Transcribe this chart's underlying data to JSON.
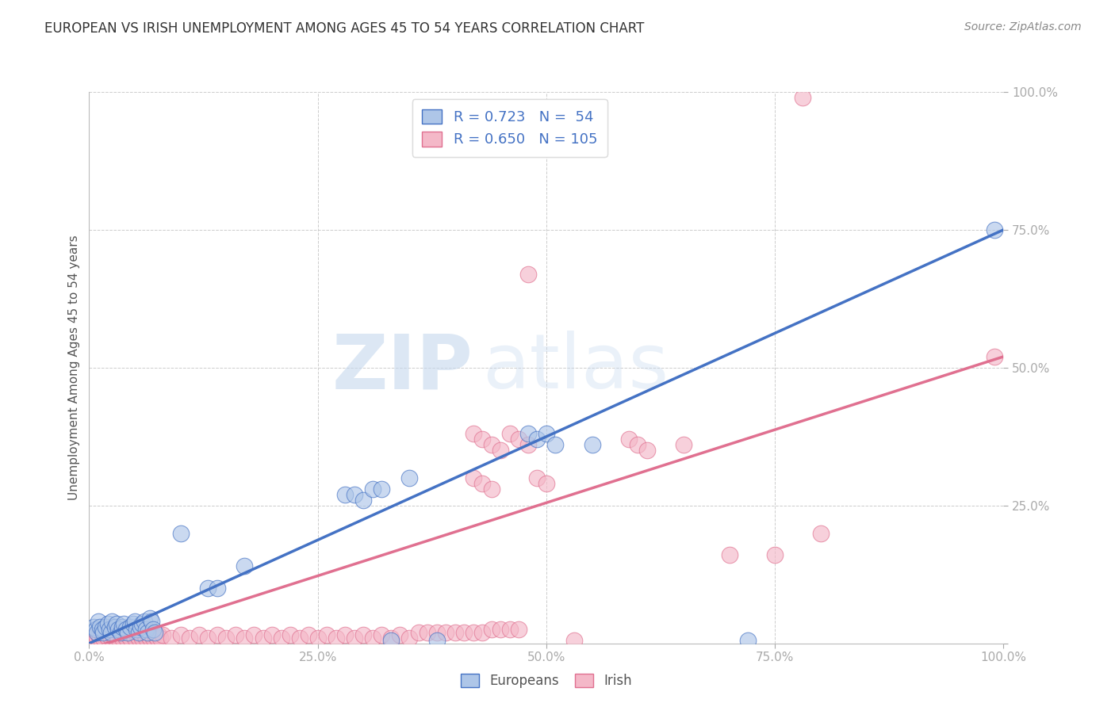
{
  "title": "EUROPEAN VS IRISH UNEMPLOYMENT AMONG AGES 45 TO 54 YEARS CORRELATION CHART",
  "source": "Source: ZipAtlas.com",
  "ylabel": "Unemployment Among Ages 45 to 54 years",
  "xlim": [
    0,
    1
  ],
  "ylim": [
    0,
    1
  ],
  "xticks": [
    0.0,
    0.25,
    0.5,
    0.75,
    1.0
  ],
  "yticks": [
    0.0,
    0.25,
    0.5,
    0.75,
    1.0
  ],
  "xticklabels": [
    "0.0%",
    "25.0%",
    "50.0%",
    "75.0%",
    "100.0%"
  ],
  "yticklabels": [
    "",
    "25.0%",
    "50.0%",
    "75.0%",
    "100.0%"
  ],
  "legend_blue_label": "Europeans",
  "legend_pink_label": "Irish",
  "blue_color": "#aec6e8",
  "pink_color": "#f4b8c8",
  "line_blue": "#4472c4",
  "line_pink": "#e07090",
  "tick_color": "#4472c4",
  "watermark_zip": "ZIP",
  "watermark_atlas": "atlas",
  "grid_color": "#cccccc",
  "blue_scatter": [
    [
      0.005,
      0.03
    ],
    [
      0.007,
      0.025
    ],
    [
      0.008,
      0.02
    ],
    [
      0.01,
      0.04
    ],
    [
      0.012,
      0.03
    ],
    [
      0.014,
      0.025
    ],
    [
      0.015,
      0.02
    ],
    [
      0.018,
      0.03
    ],
    [
      0.02,
      0.035
    ],
    [
      0.022,
      0.025
    ],
    [
      0.024,
      0.02
    ],
    [
      0.025,
      0.04
    ],
    [
      0.028,
      0.03
    ],
    [
      0.03,
      0.035
    ],
    [
      0.032,
      0.025
    ],
    [
      0.034,
      0.02
    ],
    [
      0.036,
      0.03
    ],
    [
      0.038,
      0.035
    ],
    [
      0.04,
      0.025
    ],
    [
      0.042,
      0.02
    ],
    [
      0.045,
      0.03
    ],
    [
      0.048,
      0.035
    ],
    [
      0.05,
      0.04
    ],
    [
      0.052,
      0.025
    ],
    [
      0.054,
      0.02
    ],
    [
      0.056,
      0.03
    ],
    [
      0.058,
      0.035
    ],
    [
      0.06,
      0.04
    ],
    [
      0.062,
      0.025
    ],
    [
      0.064,
      0.02
    ],
    [
      0.066,
      0.045
    ],
    [
      0.068,
      0.04
    ],
    [
      0.07,
      0.025
    ],
    [
      0.072,
      0.02
    ],
    [
      0.1,
      0.2
    ],
    [
      0.13,
      0.1
    ],
    [
      0.14,
      0.1
    ],
    [
      0.17,
      0.14
    ],
    [
      0.28,
      0.27
    ],
    [
      0.29,
      0.27
    ],
    [
      0.3,
      0.26
    ],
    [
      0.31,
      0.28
    ],
    [
      0.32,
      0.28
    ],
    [
      0.33,
      0.005
    ],
    [
      0.35,
      0.3
    ],
    [
      0.38,
      0.005
    ],
    [
      0.48,
      0.38
    ],
    [
      0.49,
      0.37
    ],
    [
      0.5,
      0.38
    ],
    [
      0.51,
      0.36
    ],
    [
      0.55,
      0.36
    ],
    [
      0.72,
      0.005
    ],
    [
      0.99,
      0.75
    ]
  ],
  "pink_scatter": [
    [
      0.005,
      0.01
    ],
    [
      0.007,
      0.015
    ],
    [
      0.008,
      0.01
    ],
    [
      0.01,
      0.015
    ],
    [
      0.012,
      0.01
    ],
    [
      0.014,
      0.015
    ],
    [
      0.015,
      0.01
    ],
    [
      0.018,
      0.015
    ],
    [
      0.02,
      0.01
    ],
    [
      0.022,
      0.015
    ],
    [
      0.024,
      0.01
    ],
    [
      0.025,
      0.015
    ],
    [
      0.028,
      0.01
    ],
    [
      0.03,
      0.015
    ],
    [
      0.032,
      0.01
    ],
    [
      0.034,
      0.015
    ],
    [
      0.036,
      0.01
    ],
    [
      0.038,
      0.015
    ],
    [
      0.04,
      0.01
    ],
    [
      0.042,
      0.015
    ],
    [
      0.045,
      0.01
    ],
    [
      0.048,
      0.015
    ],
    [
      0.05,
      0.01
    ],
    [
      0.052,
      0.015
    ],
    [
      0.054,
      0.01
    ],
    [
      0.056,
      0.015
    ],
    [
      0.058,
      0.01
    ],
    [
      0.06,
      0.015
    ],
    [
      0.062,
      0.01
    ],
    [
      0.064,
      0.015
    ],
    [
      0.066,
      0.01
    ],
    [
      0.068,
      0.015
    ],
    [
      0.07,
      0.01
    ],
    [
      0.072,
      0.015
    ],
    [
      0.074,
      0.01
    ],
    [
      0.076,
      0.015
    ],
    [
      0.078,
      0.01
    ],
    [
      0.08,
      0.015
    ],
    [
      0.09,
      0.01
    ],
    [
      0.1,
      0.015
    ],
    [
      0.11,
      0.01
    ],
    [
      0.12,
      0.015
    ],
    [
      0.13,
      0.01
    ],
    [
      0.14,
      0.015
    ],
    [
      0.15,
      0.01
    ],
    [
      0.16,
      0.015
    ],
    [
      0.17,
      0.01
    ],
    [
      0.18,
      0.015
    ],
    [
      0.19,
      0.01
    ],
    [
      0.2,
      0.015
    ],
    [
      0.21,
      0.01
    ],
    [
      0.22,
      0.015
    ],
    [
      0.23,
      0.01
    ],
    [
      0.24,
      0.015
    ],
    [
      0.25,
      0.01
    ],
    [
      0.26,
      0.015
    ],
    [
      0.27,
      0.01
    ],
    [
      0.28,
      0.015
    ],
    [
      0.29,
      0.01
    ],
    [
      0.3,
      0.015
    ],
    [
      0.31,
      0.01
    ],
    [
      0.32,
      0.015
    ],
    [
      0.33,
      0.01
    ],
    [
      0.34,
      0.015
    ],
    [
      0.35,
      0.01
    ],
    [
      0.36,
      0.02
    ],
    [
      0.37,
      0.02
    ],
    [
      0.38,
      0.02
    ],
    [
      0.39,
      0.02
    ],
    [
      0.4,
      0.02
    ],
    [
      0.41,
      0.02
    ],
    [
      0.42,
      0.02
    ],
    [
      0.43,
      0.02
    ],
    [
      0.44,
      0.025
    ],
    [
      0.45,
      0.025
    ],
    [
      0.46,
      0.025
    ],
    [
      0.47,
      0.025
    ],
    [
      0.42,
      0.38
    ],
    [
      0.43,
      0.37
    ],
    [
      0.44,
      0.36
    ],
    [
      0.45,
      0.35
    ],
    [
      0.46,
      0.38
    ],
    [
      0.47,
      0.37
    ],
    [
      0.48,
      0.36
    ],
    [
      0.42,
      0.3
    ],
    [
      0.43,
      0.29
    ],
    [
      0.44,
      0.28
    ],
    [
      0.49,
      0.3
    ],
    [
      0.5,
      0.29
    ],
    [
      0.48,
      0.67
    ],
    [
      0.59,
      0.37
    ],
    [
      0.6,
      0.36
    ],
    [
      0.61,
      0.35
    ],
    [
      0.65,
      0.36
    ],
    [
      0.7,
      0.16
    ],
    [
      0.75,
      0.16
    ],
    [
      0.8,
      0.2
    ],
    [
      0.99,
      0.52
    ],
    [
      0.78,
      0.99
    ],
    [
      0.53,
      0.005
    ]
  ],
  "blue_line_x": [
    0.0,
    1.0
  ],
  "blue_line_y": [
    0.0,
    0.75
  ],
  "pink_line_x": [
    0.0,
    1.0
  ],
  "pink_line_y": [
    -0.01,
    0.52
  ]
}
